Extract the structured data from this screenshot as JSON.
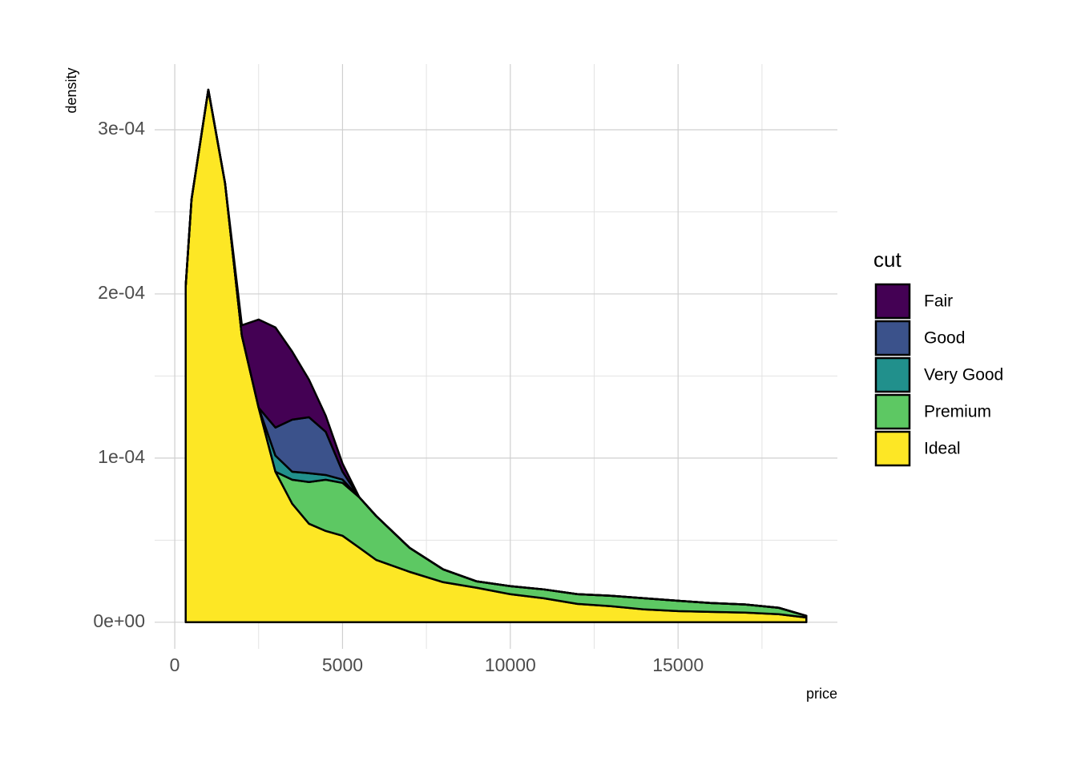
{
  "chart_data": {
    "type": "stacked_density",
    "x_label": "price",
    "y_label": "density",
    "x": [
      326,
      500,
      1000,
      1500,
      2000,
      2500,
      3000,
      3500,
      4000,
      4500,
      5000,
      5500,
      6000,
      7000,
      8000,
      9000,
      10000,
      11000,
      12000,
      13000,
      14000,
      15000,
      16000,
      17000,
      18000,
      18823
    ],
    "series": [
      {
        "name": "Fair",
        "color": "#440154",
        "values": [
          0,
          0,
          0,
          0,
          6.3e-06,
          5.37e-05,
          6.1e-05,
          4.15e-05,
          2.29e-05,
          9.8e-06,
          4.9e-06,
          0,
          0,
          0,
          0,
          0,
          0,
          0,
          0,
          0,
          0,
          0,
          0,
          0,
          0,
          0
        ]
      },
      {
        "name": "Good",
        "color": "#3b528b",
        "values": [
          0,
          0,
          0,
          0,
          0,
          0,
          1.71e-05,
          3.17e-05,
          3.41e-05,
          2.63e-05,
          4.9e-06,
          0,
          0,
          0,
          0,
          0,
          0,
          0,
          0,
          0,
          0,
          0,
          0,
          0,
          0,
          0
        ]
      },
      {
        "name": "Very Good",
        "color": "#21908c",
        "values": [
          0,
          0,
          0,
          0,
          0,
          0,
          9.8e-06,
          4.9e-06,
          5.4e-06,
          2.9e-06,
          2e-06,
          0,
          0,
          0,
          0,
          0,
          0,
          0,
          0,
          0,
          0,
          0,
          0,
          0,
          0,
          0
        ]
      },
      {
        "name": "Premium",
        "color": "#5dc863",
        "values": [
          0,
          0,
          0,
          0,
          0,
          0,
          0,
          1.46e-05,
          2.54e-05,
          3.12e-05,
          3.22e-05,
          3.07e-05,
          2.68e-05,
          1.46e-05,
          7.8e-06,
          3.9e-06,
          4.9e-06,
          5.4e-06,
          5.9e-06,
          6.3e-06,
          6.8e-06,
          6.3e-06,
          5.4e-06,
          4.9e-06,
          3.9e-06,
          1e-06
        ]
      },
      {
        "name": "Ideal",
        "color": "#fde725",
        "values": [
          0.0002049,
          0.0002576,
          0.0003244,
          0.0002673,
          0.0001746,
          0.0001307,
          9.17e-05,
          7.22e-05,
          6e-05,
          5.56e-05,
          5.27e-05,
          4.54e-05,
          3.8e-05,
          3.07e-05,
          2.44e-05,
          2.1e-05,
          1.71e-05,
          1.46e-05,
          1.12e-05,
          9.8e-06,
          7.8e-06,
          6.8e-06,
          6.3e-06,
          5.9e-06,
          4.9e-06,
          2.9e-06
        ]
      }
    ],
    "legend_title": "cut",
    "legend_position": "right",
    "xlim": [
      -599,
      19748
    ],
    "ylim": [
      -1.62e-05,
      0.00034
    ],
    "xticks": [
      0,
      5000,
      10000,
      15000
    ],
    "xminor": [
      2500,
      7500,
      12500,
      17500
    ],
    "yticks": [
      {
        "value": 0,
        "label": "0e+00"
      },
      {
        "value": 0.0001,
        "label": "1e-04"
      },
      {
        "value": 0.0002,
        "label": "2e-04"
      },
      {
        "value": 0.0003,
        "label": "3e-04"
      }
    ],
    "yminor": [
      5e-05,
      0.00015,
      0.00025
    ],
    "grid": true
  }
}
